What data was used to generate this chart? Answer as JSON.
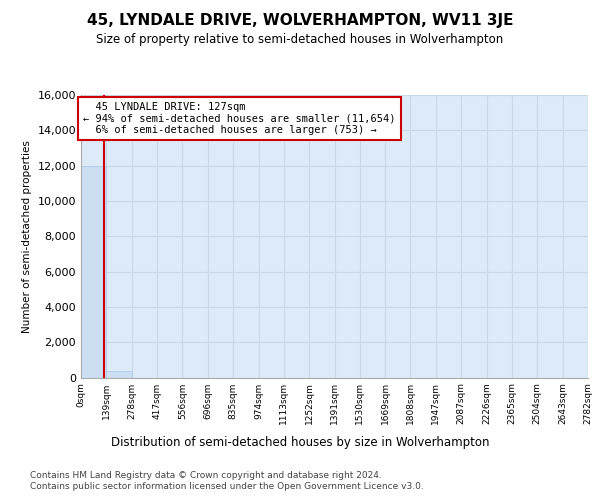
{
  "title": "45, LYNDALE DRIVE, WOLVERHAMPTON, WV11 3JE",
  "subtitle": "Size of property relative to semi-detached houses in Wolverhampton",
  "xlabel": "Distribution of semi-detached houses by size in Wolverhampton",
  "ylabel": "Number of semi-detached properties",
  "bin_edges": [
    0,
    139,
    278,
    417,
    556,
    696,
    835,
    974,
    1113,
    1252,
    1391,
    1530,
    1669,
    1808,
    1947,
    2087,
    2226,
    2365,
    2504,
    2643,
    2782
  ],
  "bar_heights": [
    12000,
    380,
    0,
    0,
    0,
    0,
    0,
    0,
    0,
    0,
    0,
    0,
    0,
    0,
    0,
    0,
    0,
    0,
    0,
    0
  ],
  "bar_color": "#ccdff2",
  "bar_edgecolor": "#aec6e8",
  "property_value": 127,
  "property_label": "45 LYNDALE DRIVE: 127sqm",
  "pct_smaller": 94,
  "count_smaller": 11654,
  "pct_larger": 6,
  "count_larger": 753,
  "vline_color": "#cc0000",
  "ylim": [
    0,
    16000
  ],
  "yticks": [
    0,
    2000,
    4000,
    6000,
    8000,
    10000,
    12000,
    14000,
    16000
  ],
  "plot_bg_color": "#ddeaf7",
  "fig_bg_color": "#ffffff",
  "grid_color": "#c8d8e8",
  "footer_line1": "Contains HM Land Registry data © Crown copyright and database right 2024.",
  "footer_line2": "Contains public sector information licensed under the Open Government Licence v3.0."
}
